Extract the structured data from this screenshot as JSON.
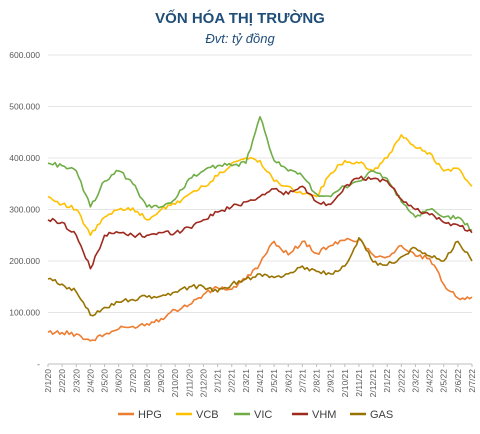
{
  "chart_data": {
    "type": "line",
    "title": "VỐN HÓA THỊ TRƯỜNG",
    "subtitle": "Đvt: tỷ đồng",
    "xlabel": "",
    "ylabel": "",
    "ylim": [
      0,
      600000
    ],
    "y_ticks": [
      "-",
      "100.000",
      "200.000",
      "300.000",
      "400.000",
      "500.000",
      "600.000"
    ],
    "y_tick_values": [
      0,
      100000,
      200000,
      300000,
      400000,
      500000,
      600000
    ],
    "x_ticks": [
      "2/1/20",
      "2/2/20",
      "2/3/20",
      "2/4/20",
      "2/5/20",
      "2/6/20",
      "2/7/20",
      "2/8/20",
      "2/9/20",
      "2/10/20",
      "2/11/20",
      "2/12/20",
      "2/1/21",
      "2/2/21",
      "2/3/21",
      "2/4/21",
      "2/5/21",
      "2/6/21",
      "2/7/21",
      "2/8/21",
      "2/9/21",
      "2/10/21",
      "2/11/21",
      "2/12/21",
      "2/1/22",
      "2/2/22",
      "2/3/22",
      "2/4/22",
      "2/5/22",
      "2/6/22",
      "2/7/22"
    ],
    "grid": "horizontal",
    "legend": "bottom",
    "series": [
      {
        "name": "HPG",
        "color": "#ed7d31",
        "values": [
          62000,
          61000,
          58000,
          45000,
          57000,
          68000,
          73000,
          78000,
          88000,
          105000,
          115000,
          135000,
          148000,
          145000,
          165000,
          195000,
          238000,
          212000,
          238000,
          215000,
          230000,
          240000,
          242000,
          212000,
          208000,
          230000,
          210000,
          205000,
          155000,
          128000,
          130000
        ]
      },
      {
        "name": "VCB",
        "color": "#ffc000",
        "values": [
          325000,
          310000,
          300000,
          250000,
          285000,
          300000,
          303000,
          280000,
          300000,
          310000,
          330000,
          345000,
          365000,
          390000,
          400000,
          395000,
          355000,
          345000,
          330000,
          325000,
          370000,
          395000,
          390000,
          375000,
          400000,
          445000,
          420000,
          410000,
          375000,
          380000,
          345000
        ]
      },
      {
        "name": "VIC",
        "color": "#70ad47",
        "values": [
          390000,
          385000,
          375000,
          305000,
          355000,
          375000,
          350000,
          305000,
          305000,
          320000,
          360000,
          375000,
          385000,
          385000,
          390000,
          480000,
          395000,
          375000,
          365000,
          330000,
          325000,
          345000,
          355000,
          375000,
          360000,
          315000,
          285000,
          300000,
          285000,
          285000,
          260000
        ]
      },
      {
        "name": "VHM",
        "color": "#9e2a1e",
        "values": [
          280000,
          275000,
          250000,
          185000,
          250000,
          255000,
          250000,
          250000,
          255000,
          255000,
          265000,
          280000,
          295000,
          305000,
          315000,
          325000,
          340000,
          330000,
          345000,
          315000,
          310000,
          345000,
          360000,
          360000,
          355000,
          320000,
          300000,
          290000,
          275000,
          270000,
          255000
        ]
      },
      {
        "name": "GAS",
        "color": "#997300",
        "values": [
          165000,
          155000,
          140000,
          95000,
          110000,
          120000,
          125000,
          130000,
          132000,
          140000,
          150000,
          150000,
          140000,
          155000,
          165000,
          175000,
          168000,
          175000,
          190000,
          180000,
          175000,
          190000,
          245000,
          198000,
          192000,
          208000,
          225000,
          210000,
          200000,
          238000,
          200000
        ]
      }
    ]
  }
}
